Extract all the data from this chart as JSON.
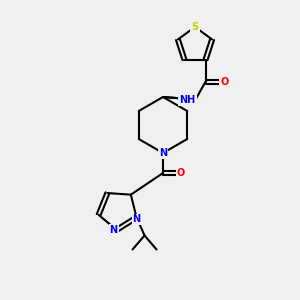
{
  "background_color": "#f0f0f0",
  "bond_color": "#000000",
  "atom_colors": {
    "S": "#cccc00",
    "N": "#0000ff",
    "O": "#ff0000",
    "H": "#555555",
    "C": "#000000"
  },
  "figsize": [
    3.0,
    3.0
  ],
  "dpi": 100
}
